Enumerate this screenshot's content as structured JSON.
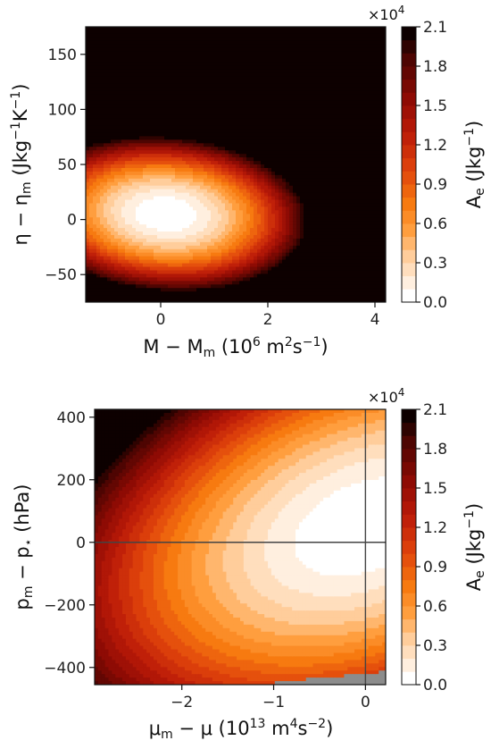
{
  "chart_data": [
    {
      "type": "heatmap",
      "subtype": "filled-contour",
      "xlabel": "M − M_m (10^6 m^2 s^-1)",
      "ylabel": "η − η_m (J kg^-1 K^-1)",
      "xlim": [
        -1.4,
        4.2
      ],
      "ylim": [
        -75,
        175
      ],
      "xticks": [
        0,
        2,
        4
      ],
      "yticks": [
        -50,
        0,
        50,
        100,
        150
      ],
      "colorbar": {
        "label": "A_e (J kg^-1)",
        "offset": "×10^4",
        "range": [
          0.0,
          2.1
        ],
        "ticks": [
          "0.0",
          "0.3",
          "0.6",
          "0.9",
          "1.2",
          "1.5",
          "1.8",
          "2.1"
        ],
        "levels": 21,
        "colormap": "gist_heat_r"
      },
      "field": {
        "minimum_at": [
          0.1,
          5
        ],
        "minimum_value": 0.0,
        "maximum_at": [
          4.2,
          175
        ],
        "maximum_value": 2.1,
        "shape": "elliptical bowl tilted, increasing toward upper right"
      }
    },
    {
      "type": "heatmap",
      "subtype": "filled-contour",
      "xlabel": "μ_m − μ (10^13 m^4 s^-2)",
      "ylabel": "p_m − p_⋆ (hPa)",
      "xlim": [
        -2.95,
        0.22
      ],
      "ylim": [
        -455,
        425
      ],
      "xticks": [
        -2,
        -1,
        0
      ],
      "yticks": [
        -400,
        -200,
        0,
        200,
        400
      ],
      "reference_lines": {
        "x": 0,
        "y": 0
      },
      "colorbar": {
        "label": "A_e (J kg^-1)",
        "offset": "×10^4",
        "range": [
          0.0,
          2.1
        ],
        "ticks": [
          "0.0",
          "0.3",
          "0.6",
          "0.9",
          "1.2",
          "1.5",
          "1.8",
          "2.1"
        ],
        "levels": 21,
        "colormap": "gist_heat_r"
      },
      "field": {
        "minimum_at": [
          0.0,
          50
        ],
        "minimum_value": 0.0,
        "maximum_at": [
          -2.95,
          425
        ],
        "maximum_value": 2.1,
        "masked_region": "grey, lower right corner"
      }
    }
  ]
}
